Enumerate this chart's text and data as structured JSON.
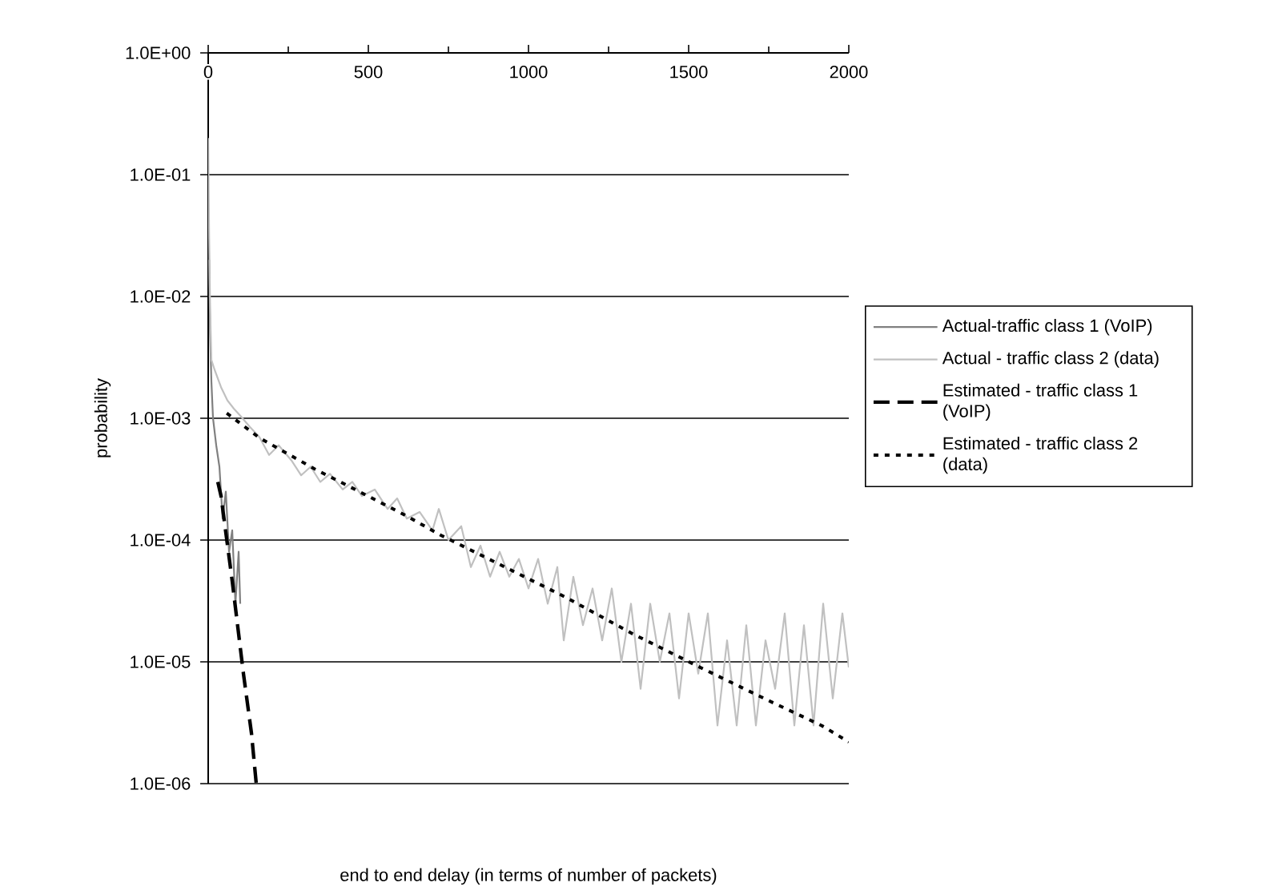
{
  "chart_data": {
    "type": "line",
    "xlabel": "end to end delay (in terms of number of packets)",
    "ylabel": "probability",
    "log": "y",
    "grid": "y",
    "legend": "right",
    "xlim": [
      0,
      2000
    ],
    "xticks": [
      0,
      500,
      1000,
      1500,
      2000
    ],
    "ylim": [
      1e-06,
      1
    ],
    "yticks": [
      {
        "value": 1,
        "label": "1.0E+00"
      },
      {
        "value": 0.1,
        "label": "1.0E-01"
      },
      {
        "value": 0.01,
        "label": "1.0E-02"
      },
      {
        "value": 0.001,
        "label": "1.0E-03"
      },
      {
        "value": 0.0001,
        "label": "1.0E-04"
      },
      {
        "value": 1e-05,
        "label": "1.0E-05"
      },
      {
        "value": 1e-06,
        "label": "1.0E-06"
      }
    ],
    "series": [
      {
        "name": "Actual-traffic class 1 (VoIP)",
        "color": "#808080",
        "line_style": "solid",
        "x": [
          3,
          6,
          10,
          15,
          25,
          35,
          45,
          55,
          65,
          75,
          85,
          95,
          100
        ],
        "values": [
          0.02,
          0.005,
          0.002,
          0.001,
          0.0006,
          0.0004,
          0.00015,
          0.00025,
          8e-05,
          0.00012,
          3e-05,
          8e-05,
          3e-05
        ]
      },
      {
        "name": "Actual - traffic class 2 (data)",
        "color": "#c0c0c0",
        "line_style": "solid",
        "x": [
          0,
          3,
          6,
          10,
          20,
          40,
          60,
          80,
          100,
          130,
          160,
          190,
          220,
          260,
          290,
          320,
          350,
          380,
          420,
          450,
          480,
          520,
          560,
          590,
          620,
          660,
          700,
          720,
          750,
          790,
          820,
          850,
          880,
          910,
          940,
          970,
          1000,
          1030,
          1060,
          1090,
          1110,
          1140,
          1170,
          1200,
          1230,
          1260,
          1290,
          1320,
          1350,
          1380,
          1410,
          1440,
          1470,
          1500,
          1530,
          1560,
          1590,
          1620,
          1650,
          1680,
          1710,
          1740,
          1770,
          1800,
          1830,
          1860,
          1890,
          1920,
          1950,
          1980,
          2000
        ],
        "values": [
          0.2,
          0.03,
          0.008,
          0.003,
          0.0025,
          0.0018,
          0.0014,
          0.0012,
          0.00105,
          0.00085,
          0.0007,
          0.0005,
          0.0006,
          0.00045,
          0.00034,
          0.0004,
          0.0003,
          0.00035,
          0.00026,
          0.0003,
          0.00023,
          0.00026,
          0.00018,
          0.00022,
          0.00015,
          0.00017,
          0.00012,
          0.00018,
          0.0001,
          0.00013,
          6e-05,
          9e-05,
          5e-05,
          8e-05,
          5e-05,
          7e-05,
          4e-05,
          7e-05,
          3e-05,
          6e-05,
          1.5e-05,
          5e-05,
          2e-05,
          4e-05,
          1.5e-05,
          4e-05,
          1e-05,
          3e-05,
          6e-06,
          3e-05,
          1e-05,
          2.5e-05,
          5e-06,
          2.5e-05,
          8e-06,
          2.5e-05,
          3e-06,
          1.5e-05,
          3e-06,
          2e-05,
          3e-06,
          1.5e-05,
          6e-06,
          2.5e-05,
          3e-06,
          2e-05,
          3e-06,
          3e-05,
          5e-06,
          2.5e-05,
          9e-06
        ]
      },
      {
        "name": "Estimated - traffic class 1 (VoIP)",
        "color": "#000000",
        "line_style": "dashed",
        "x": [
          30,
          40,
          75,
          110,
          135,
          150
        ],
        "values": [
          0.0003,
          0.00023,
          4.6e-05,
          8e-06,
          2.6e-06,
          1e-06
        ]
      },
      {
        "name": "Estimated - traffic class 2 (data)",
        "color": "#000000",
        "line_style": "dotted",
        "x": [
          58,
          160,
          335,
          435,
          615,
          725,
          885,
          1115,
          1325,
          1540,
          1750,
          1915,
          2000
        ],
        "values": [
          0.0011,
          0.00069,
          0.00038,
          0.00028,
          0.00016,
          0.00011,
          6.8e-05,
          3.4e-05,
          1.7e-05,
          8.9e-06,
          4.8e-06,
          3e-06,
          2.2e-06
        ]
      }
    ]
  }
}
